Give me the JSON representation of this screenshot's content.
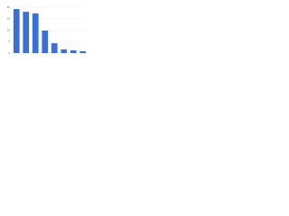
{
  "chart_data": {
    "type": "bar",
    "categories": [
      null,
      null,
      null,
      null,
      null,
      null,
      null,
      null
    ],
    "values": [
      19.2,
      18,
      17.3,
      9.8,
      4.3,
      1.6,
      1.2,
      0.8
    ],
    "color": "#3a6fd8",
    "ylim": [
      0,
      20
    ],
    "yticks": [
      0,
      5,
      10,
      15,
      20
    ],
    "grid": true
  }
}
